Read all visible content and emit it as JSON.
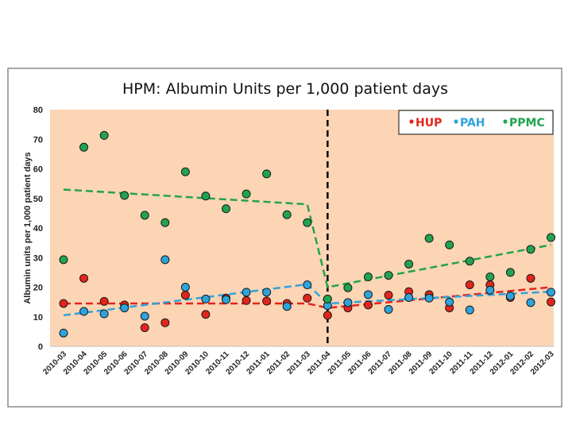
{
  "chart_data": {
    "type": "scatter",
    "title": "HPM:  Albumin Units per 1,000 patient days",
    "xlabel": "",
    "ylabel": "Albumin units per 1,000 patient days",
    "ylim": [
      0,
      80
    ],
    "yticks": [
      "0",
      "10",
      "20",
      "30",
      "40",
      "50",
      "60",
      "70",
      "80"
    ],
    "categories": [
      "2010-03",
      "2010-04",
      "2010-05",
      "2010-06",
      "2010-07",
      "2010-08",
      "2010-09",
      "2010-10",
      "2010-11",
      "2010-12",
      "2011-01",
      "2011-02",
      "2011-03",
      "2011-04",
      "2011-05",
      "2011-06",
      "2011-07",
      "2011-08",
      "2011-09",
      "2011-10",
      "2011-11",
      "2011-12",
      "2012-01",
      "2012-02",
      "2012-03"
    ],
    "intervention_marker": "2011-04",
    "background_color": "#fcd5b4",
    "series": [
      {
        "name": "HUP",
        "color": "#e3241b",
        "points": [
          {
            "x": "2010-03",
            "y": 14.5
          },
          {
            "x": "2010-04",
            "y": 23
          },
          {
            "x": "2010-05",
            "y": 15.2
          },
          {
            "x": "2010-06",
            "y": 14
          },
          {
            "x": "2010-07",
            "y": 6.3
          },
          {
            "x": "2010-08",
            "y": 8
          },
          {
            "x": "2010-09",
            "y": 17.3
          },
          {
            "x": "2010-10",
            "y": 10.8
          },
          {
            "x": "2010-11",
            "y": 16.3
          },
          {
            "x": "2010-12",
            "y": 15.5
          },
          {
            "x": "2011-01",
            "y": 15.3
          },
          {
            "x": "2011-02",
            "y": 14.5
          },
          {
            "x": "2011-03",
            "y": 16.3
          },
          {
            "x": "2011-04",
            "y": 10.5
          },
          {
            "x": "2011-05",
            "y": 13
          },
          {
            "x": "2011-06",
            "y": 14
          },
          {
            "x": "2011-07",
            "y": 17.3
          },
          {
            "x": "2011-08",
            "y": 18.5
          },
          {
            "x": "2011-09",
            "y": 17.5
          },
          {
            "x": "2011-10",
            "y": 13
          },
          {
            "x": "2011-11",
            "y": 20.8
          },
          {
            "x": "2011-12",
            "y": 20.8
          },
          {
            "x": "2012-01",
            "y": 16.5
          },
          {
            "x": "2012-02",
            "y": 23
          },
          {
            "x": "2012-03",
            "y": 15
          }
        ],
        "trend": [
          {
            "x": "2010-03",
            "y": 14.5
          },
          {
            "x": "2011-03",
            "y": 14.5
          },
          {
            "x": "2011-04",
            "y": 13
          },
          {
            "x": "2012-03",
            "y": 20
          }
        ]
      },
      {
        "name": "PAH",
        "color": "#2ea3dc",
        "points": [
          {
            "x": "2010-03",
            "y": 4.5
          },
          {
            "x": "2010-04",
            "y": 11.8
          },
          {
            "x": "2010-05",
            "y": 11
          },
          {
            "x": "2010-06",
            "y": 13
          },
          {
            "x": "2010-07",
            "y": 10.2
          },
          {
            "x": "2010-08",
            "y": 29.3
          },
          {
            "x": "2010-09",
            "y": 20
          },
          {
            "x": "2010-10",
            "y": 16
          },
          {
            "x": "2010-11",
            "y": 15.8
          },
          {
            "x": "2010-12",
            "y": 18.3
          },
          {
            "x": "2011-01",
            "y": 18.3
          },
          {
            "x": "2011-02",
            "y": 13.5
          },
          {
            "x": "2011-03",
            "y": 20.8
          },
          {
            "x": "2011-04",
            "y": 13.8
          },
          {
            "x": "2011-05",
            "y": 14.8
          },
          {
            "x": "2011-06",
            "y": 17.5
          },
          {
            "x": "2011-07",
            "y": 12.5
          },
          {
            "x": "2011-08",
            "y": 16.5
          },
          {
            "x": "2011-09",
            "y": 16.3
          },
          {
            "x": "2011-10",
            "y": 15
          },
          {
            "x": "2011-11",
            "y": 12.3
          },
          {
            "x": "2011-12",
            "y": 19
          },
          {
            "x": "2012-01",
            "y": 17
          },
          {
            "x": "2012-02",
            "y": 14.8
          },
          {
            "x": "2012-03",
            "y": 18.3
          }
        ],
        "trend": [
          {
            "x": "2010-03",
            "y": 10.5
          },
          {
            "x": "2011-03",
            "y": 21
          },
          {
            "x": "2011-04",
            "y": 14.5
          },
          {
            "x": "2012-03",
            "y": 18.5
          }
        ]
      },
      {
        "name": "PPMC",
        "color": "#22a350",
        "points": [
          {
            "x": "2010-03",
            "y": 29.3
          },
          {
            "x": "2010-04",
            "y": 67.3
          },
          {
            "x": "2010-05",
            "y": 71.3
          },
          {
            "x": "2010-06",
            "y": 51
          },
          {
            "x": "2010-07",
            "y": 44.3
          },
          {
            "x": "2010-08",
            "y": 41.8
          },
          {
            "x": "2010-09",
            "y": 59
          },
          {
            "x": "2010-10",
            "y": 50.8
          },
          {
            "x": "2010-11",
            "y": 46.5
          },
          {
            "x": "2010-12",
            "y": 51.5
          },
          {
            "x": "2011-01",
            "y": 58.3
          },
          {
            "x": "2011-02",
            "y": 44.5
          },
          {
            "x": "2011-03",
            "y": 41.8
          },
          {
            "x": "2011-04",
            "y": 16
          },
          {
            "x": "2011-05",
            "y": 19.8
          },
          {
            "x": "2011-06",
            "y": 23.5
          },
          {
            "x": "2011-07",
            "y": 24
          },
          {
            "x": "2011-08",
            "y": 27.8
          },
          {
            "x": "2011-09",
            "y": 36.5
          },
          {
            "x": "2011-10",
            "y": 34.3
          },
          {
            "x": "2011-11",
            "y": 28.8
          },
          {
            "x": "2011-12",
            "y": 23.5
          },
          {
            "x": "2012-01",
            "y": 25
          },
          {
            "x": "2012-02",
            "y": 32.8
          },
          {
            "x": "2012-03",
            "y": 36.8
          }
        ],
        "trend": [
          {
            "x": "2010-03",
            "y": 53
          },
          {
            "x": "2011-03",
            "y": 48
          },
          {
            "x": "2011-04",
            "y": 20
          },
          {
            "x": "2012-03",
            "y": 34.3
          }
        ]
      }
    ]
  }
}
